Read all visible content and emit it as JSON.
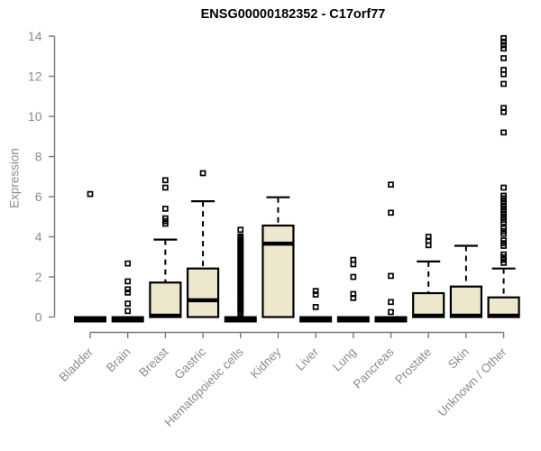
{
  "chart_data": {
    "type": "boxplot",
    "title": "ENSG00000182352 - C17orf77",
    "ylabel": "Expression",
    "xlabel": "",
    "ylim": [
      0,
      14
    ],
    "yticks": [
      0,
      2,
      4,
      6,
      8,
      10,
      12,
      14
    ],
    "grid": false,
    "legend": "none",
    "colors": {
      "box_fill": "#EDE7CD",
      "box_stroke": "#000000",
      "axis": "#787878",
      "text": "#8C8C8C",
      "title": "#000000"
    },
    "categories": [
      "Bladder",
      "Brain",
      "Breast",
      "Gastric",
      "Hematopoietic cells",
      "Kidney",
      "Liver",
      "Lung",
      "Pancreas",
      "Prostate",
      "Skin",
      "Unknown / Other"
    ],
    "series": [
      {
        "name": "Bladder",
        "q1": 0,
        "median": 0.03,
        "q3": 0.08,
        "whisker_low": 0,
        "whisker_high": 0.08,
        "outliers": [
          6.13
        ]
      },
      {
        "name": "Brain",
        "q1": 0,
        "median": 0.03,
        "q3": 0.08,
        "whisker_low": 0,
        "whisker_high": 0.08,
        "outliers": [
          2.67,
          1.78,
          1.38,
          1.22,
          0.67,
          0.3
        ]
      },
      {
        "name": "Breast",
        "q1": 0,
        "median": 0.05,
        "q3": 1.72,
        "whisker_low": 0,
        "whisker_high": 3.86,
        "outliers": [
          6.82,
          6.45,
          5.4,
          4.92,
          4.78,
          4.65
        ]
      },
      {
        "name": "Gastric",
        "q1": 0,
        "median": 0.84,
        "q3": 2.42,
        "whisker_low": 0,
        "whisker_high": 5.77,
        "outliers": [
          7.17
        ]
      },
      {
        "name": "Hematopoietic cells",
        "q1": 0,
        "median": 0.03,
        "q3": 0.08,
        "whisker_low": 0,
        "whisker_high": 0.08,
        "outliers": [
          4.35,
          4.02,
          3.94,
          3.86,
          3.78,
          3.7,
          3.62,
          3.54,
          3.46,
          3.38,
          3.3,
          3.22,
          3.14,
          3.06,
          2.98,
          2.9,
          2.82,
          2.74,
          2.66,
          2.58,
          2.5,
          2.42,
          2.34,
          2.26,
          2.18,
          2.1,
          2.02,
          1.94,
          1.86,
          1.78,
          1.7,
          1.62,
          1.54,
          1.46,
          1.38,
          1.3,
          1.22,
          1.14,
          1.06,
          0.98,
          0.9,
          0.82,
          0.74,
          0.66,
          0.58,
          0.5,
          0.42,
          0.34,
          0.26,
          0.18
        ]
      },
      {
        "name": "Kidney",
        "q1": 0,
        "median": 3.66,
        "q3": 4.56,
        "whisker_low": 0,
        "whisker_high": 5.97,
        "outliers": []
      },
      {
        "name": "Liver",
        "q1": 0,
        "median": 0.03,
        "q3": 0.08,
        "whisker_low": 0,
        "whisker_high": 0.08,
        "outliers": [
          1.3,
          1.12,
          0.5
        ]
      },
      {
        "name": "Lung",
        "q1": 0,
        "median": 0.03,
        "q3": 0.08,
        "whisker_low": 0,
        "whisker_high": 0.08,
        "outliers": [
          2.85,
          2.63,
          2.0,
          1.15,
          0.95
        ]
      },
      {
        "name": "Pancreas",
        "q1": 0,
        "median": 0.03,
        "q3": 0.08,
        "whisker_low": 0,
        "whisker_high": 0.08,
        "outliers": [
          6.6,
          5.2,
          2.05,
          0.75,
          0.25
        ]
      },
      {
        "name": "Prostate",
        "q1": 0,
        "median": 0.05,
        "q3": 1.19,
        "whisker_low": 0,
        "whisker_high": 2.77,
        "outliers": [
          4.0,
          3.8,
          3.58
        ]
      },
      {
        "name": "Skin",
        "q1": 0,
        "median": 0.05,
        "q3": 1.52,
        "whisker_low": 0,
        "whisker_high": 3.55,
        "outliers": []
      },
      {
        "name": "Unknown / Other",
        "q1": 0,
        "median": 0.05,
        "q3": 0.98,
        "whisker_low": 0,
        "whisker_high": 2.42,
        "outliers": [
          13.9,
          13.72,
          13.55,
          13.38,
          12.9,
          12.32,
          12.1,
          11.62,
          10.42,
          10.22,
          9.2,
          6.45,
          6.05,
          5.92,
          5.78,
          5.65,
          5.52,
          5.38,
          5.25,
          5.12,
          4.98,
          4.85,
          4.72,
          4.42,
          4.28,
          4.15,
          3.82,
          3.68,
          3.55,
          3.12,
          2.98,
          2.85,
          2.7
        ]
      }
    ]
  }
}
